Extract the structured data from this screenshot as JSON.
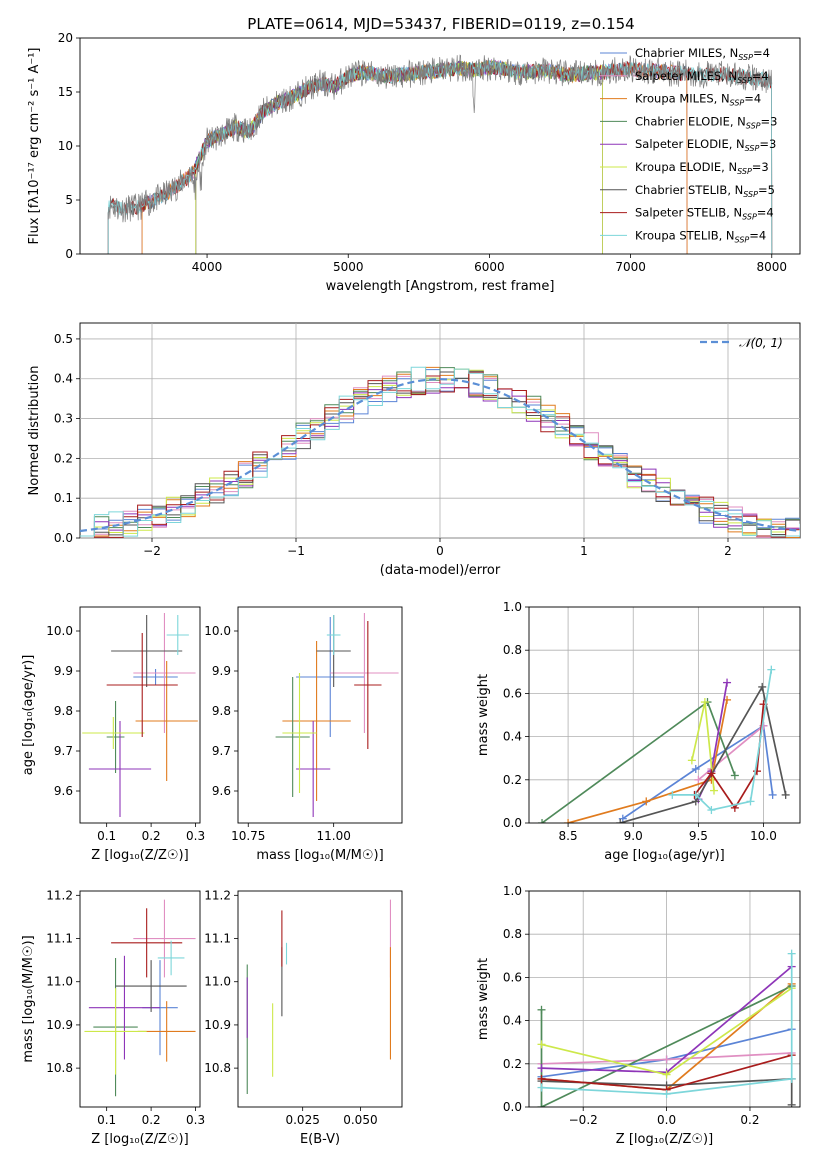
{
  "figure": {
    "title": "PLATE=0614, MJD=53437, FIBERID=0119, z=0.154"
  },
  "colors": {
    "Chabrier MILES": "#5b84d6",
    "Salpeter MILES": "#e08fc2",
    "Kroupa MILES": "#e07b1e",
    "Chabrier ELODIE": "#4f8a5a",
    "Salpeter ELODIE": "#8e35b8",
    "Kroupa ELODIE": "#cde84a",
    "Chabrier STELIB": "#555555",
    "Salpeter STELIB": "#a81c1c",
    "Kroupa STELIB": "#7dd6da"
  },
  "chart_data": [
    {
      "id": "spectrum",
      "type": "line",
      "title": "PLATE=0614, MJD=53437, FIBERID=0119, z=0.154",
      "xlabel": "wavelength [Angstrom, rest frame]",
      "ylabel": "Flux [fλ10⁻¹⁷ erg cm⁻² s⁻¹ A⁻¹]",
      "xlim": [
        3100,
        8200
      ],
      "ylim": [
        0,
        20
      ],
      "xticks": [
        "4000",
        "5000",
        "6000",
        "7000",
        "8000"
      ],
      "yticks": [
        "0",
        "5",
        "10",
        "15",
        "20"
      ],
      "grid": false,
      "legend": "top-right",
      "legend_entries": [
        {
          "label": "Chabrier MILES, N",
          "sub": "SSP",
          "suffix": "=4",
          "key": "Chabrier MILES"
        },
        {
          "label": "Salpeter MILES, N",
          "sub": "SSP",
          "suffix": "=4",
          "key": "Salpeter MILES"
        },
        {
          "label": "Kroupa MILES, N",
          "sub": "SSP",
          "suffix": "=4",
          "key": "Kroupa MILES"
        },
        {
          "label": "Chabrier ELODIE, N",
          "sub": "SSP",
          "suffix": "=3",
          "key": "Chabrier ELODIE"
        },
        {
          "label": "Salpeter ELODIE, N",
          "sub": "SSP",
          "suffix": "=3",
          "key": "Salpeter ELODIE"
        },
        {
          "label": "Kroupa ELODIE, N",
          "sub": "SSP",
          "suffix": "=3",
          "key": "Kroupa ELODIE"
        },
        {
          "label": "Chabrier STELIB, N",
          "sub": "SSP",
          "suffix": "=5",
          "key": "Chabrier STELIB"
        },
        {
          "label": "Salpeter STELIB, N",
          "sub": "SSP",
          "suffix": "=4",
          "key": "Salpeter STELIB"
        },
        {
          "label": "Kroupa STELIB, N",
          "sub": "SSP",
          "suffix": "=4",
          "key": "Kroupa STELIB"
        }
      ],
      "data_color": "#7f7f7f",
      "continuum_x": [
        3300,
        3400,
        3500,
        3600,
        3700,
        3800,
        3900,
        4000,
        4100,
        4200,
        4300,
        4400,
        4500,
        4600,
        4700,
        4800,
        4900,
        5000,
        5100,
        5200,
        5300,
        5400,
        5500,
        5600,
        5700,
        5800,
        5900,
        6000,
        6100,
        6200,
        6300,
        6400,
        6500,
        6600,
        6700,
        6800,
        6900,
        7000,
        7100,
        7200,
        7300,
        7400,
        7500,
        7600,
        7700,
        7800,
        7900,
        8000
      ],
      "continuum_y": [
        4.5,
        4.2,
        4.3,
        4.8,
        5.5,
        6.4,
        7.5,
        10.5,
        11.0,
        11.8,
        11.3,
        13.2,
        14.0,
        14.5,
        15.2,
        15.8,
        15.5,
        16.5,
        16.8,
        16.6,
        16.4,
        16.6,
        16.8,
        16.9,
        17.1,
        17.2,
        17.0,
        17.3,
        17.2,
        16.8,
        16.9,
        17.0,
        16.7,
        16.6,
        16.8,
        16.8,
        17.0,
        17.1,
        17.0,
        16.9,
        16.8,
        16.7,
        16.6,
        16.7,
        16.5,
        16.4,
        16.2,
        16.0
      ],
      "model_edges": {
        "Chabrier MILES": [
          3540,
          7400
        ],
        "Salpeter MILES": [
          3540,
          7400
        ],
        "Kroupa MILES": [
          3540,
          7400
        ],
        "Chabrier ELODIE": [
          3920,
          6800
        ],
        "Salpeter ELODIE": [
          3920,
          6800
        ],
        "Kroupa ELODIE": [
          3920,
          6800
        ],
        "Chabrier STELIB": [
          3300,
          8000
        ],
        "Salpeter STELIB": [
          3300,
          8000
        ],
        "Kroupa STELIB": [
          3300,
          8000
        ]
      }
    },
    {
      "id": "residual-histogram",
      "type": "line",
      "xlabel": "(data-model)/error",
      "ylabel": "Normed distribution",
      "xlim": [
        -2.5,
        2.5
      ],
      "ylim": [
        0,
        0.54
      ],
      "xticks": [
        "−2",
        "−1",
        "0",
        "1",
        "2"
      ],
      "yticks": [
        "0.0",
        "0.1",
        "0.2",
        "0.3",
        "0.4",
        "0.5"
      ],
      "grid": true,
      "legend": "top-right",
      "legend_entries": [
        {
          "label": "𝒩(0, 1)",
          "style": "dashed",
          "color": "#5b8fd6"
        }
      ],
      "gaussian": {
        "mean": 0,
        "sigma": 1
      },
      "bin_width": 0.1,
      "bin_start": -2.5
    },
    {
      "id": "z-age",
      "type": "scatter",
      "xlabel": "Z [log₁₀(Z/Z☉)]",
      "ylabel": "age  [log₁₀(age/yr)]",
      "xlim": [
        0.04,
        0.31
      ],
      "ylim": [
        9.52,
        10.06
      ],
      "xticks": [
        "0.1",
        "0.2",
        "0.3"
      ],
      "yticks": [
        "9.6",
        "9.7",
        "9.8",
        "9.9",
        "10.0"
      ],
      "grid": false,
      "points": [
        {
          "key": "Chabrier MILES",
          "x": 0.21,
          "xerr": 0.05,
          "y": 9.885,
          "yerr": 0.02
        },
        {
          "key": "Salpeter MILES",
          "x": 0.23,
          "xerr": 0.07,
          "y": 9.895,
          "yerr": 0.15
        },
        {
          "key": "Kroupa MILES",
          "x": 0.235,
          "xerr": 0.07,
          "y": 9.775,
          "yerr": 0.15
        },
        {
          "key": "Chabrier ELODIE",
          "x": 0.12,
          "xerr": 0.02,
          "y": 9.735,
          "yerr": 0.09
        },
        {
          "key": "Salpeter ELODIE",
          "x": 0.13,
          "xerr": 0.07,
          "y": 9.655,
          "yerr": 0.12
        },
        {
          "key": "Kroupa ELODIE",
          "x": 0.115,
          "xerr": 0.07,
          "y": 9.745,
          "yerr": 0.04
        },
        {
          "key": "Chabrier STELIB",
          "x": 0.19,
          "xerr": 0.08,
          "y": 9.95,
          "yerr": 0.09
        },
        {
          "key": "Salpeter STELIB",
          "x": 0.18,
          "xerr": 0.08,
          "y": 9.865,
          "yerr": 0.13
        },
        {
          "key": "Kroupa STELIB",
          "x": 0.26,
          "xerr": 0.025,
          "y": 9.99,
          "yerr": 0.05
        }
      ]
    },
    {
      "id": "mass-age",
      "type": "scatter",
      "xlabel": "mass [log₁₀(M/M☉)]",
      "xlim": [
        10.72,
        11.2
      ],
      "ylim": [
        9.52,
        10.06
      ],
      "xticks": [
        "10.75",
        "11.00"
      ],
      "yticks": [
        "9.6",
        "9.7",
        "9.8",
        "9.9",
        "10.0"
      ],
      "grid": false,
      "points": [
        {
          "key": "Chabrier MILES",
          "x": 10.99,
          "xerr": 0.1,
          "y": 9.885,
          "yerr": 0.15
        },
        {
          "key": "Salpeter MILES",
          "x": 11.09,
          "xerr": 0.1,
          "y": 9.895,
          "yerr": 0.15
        },
        {
          "key": "Kroupa MILES",
          "x": 10.95,
          "xerr": 0.1,
          "y": 9.775,
          "yerr": 0.2
        },
        {
          "key": "Chabrier ELODIE",
          "x": 10.88,
          "xerr": 0.05,
          "y": 9.735,
          "yerr": 0.15
        },
        {
          "key": "Salpeter ELODIE",
          "x": 10.94,
          "xerr": 0.05,
          "y": 9.655,
          "yerr": 0.12
        },
        {
          "key": "Kroupa ELODIE",
          "x": 10.9,
          "xerr": 0.05,
          "y": 9.745,
          "yerr": 0.15
        },
        {
          "key": "Chabrier STELIB",
          "x": 11.0,
          "xerr": 0.05,
          "y": 9.95,
          "yerr": 0.09
        },
        {
          "key": "Salpeter STELIB",
          "x": 11.1,
          "xerr": 0.04,
          "y": 9.865,
          "yerr": 0.16
        },
        {
          "key": "Kroupa STELIB",
          "x": 11.0,
          "xerr": 0.02,
          "y": 9.99,
          "yerr": 0.05
        }
      ]
    },
    {
      "id": "age-massweight",
      "type": "line",
      "xlabel": "age  [log₁₀(age/yr)]",
      "ylabel": "mass weight",
      "xlim": [
        8.2,
        10.28
      ],
      "ylim": [
        0,
        1.0
      ],
      "xticks": [
        "8.5",
        "9.0",
        "9.5",
        "10.0"
      ],
      "yticks": [
        "0.0",
        "0.2",
        "0.4",
        "0.6",
        "0.8",
        "1.0"
      ],
      "grid": true,
      "series": [
        {
          "key": "Chabrier MILES",
          "x": [
            8.92,
            9.48,
            10.0,
            10.07
          ],
          "y": [
            0.02,
            0.25,
            0.45,
            0.13
          ]
        },
        {
          "key": "Salpeter MILES",
          "x": [
            9.5,
            9.6,
            10.0
          ],
          "y": [
            0.2,
            0.25,
            0.45
          ]
        },
        {
          "key": "Kroupa MILES",
          "x": [
            8.5,
            9.1,
            9.6,
            9.72
          ],
          "y": [
            0.0,
            0.1,
            0.2,
            0.57
          ]
        },
        {
          "key": "Chabrier ELODIE",
          "x": [
            8.3,
            9.57,
            9.78
          ],
          "y": [
            0.0,
            0.56,
            0.22
          ]
        },
        {
          "key": "Salpeter ELODIE",
          "x": [
            9.5,
            9.6,
            9.72
          ],
          "y": [
            0.11,
            0.24,
            0.65
          ]
        },
        {
          "key": "Kroupa ELODIE",
          "x": [
            9.45,
            9.55,
            9.62
          ],
          "y": [
            0.29,
            0.56,
            0.15
          ]
        },
        {
          "key": "Chabrier STELIB",
          "x": [
            8.9,
            9.48,
            9.99,
            10.17
          ],
          "y": [
            0.0,
            0.1,
            0.63,
            0.13
          ]
        },
        {
          "key": "Salpeter STELIB",
          "x": [
            9.47,
            9.6,
            9.78,
            9.95,
            10.0
          ],
          "y": [
            0.13,
            0.23,
            0.07,
            0.24,
            0.55
          ]
        },
        {
          "key": "Kroupa STELIB",
          "x": [
            9.3,
            9.48,
            9.6,
            9.9,
            10.06
          ],
          "y": [
            0.13,
            0.13,
            0.06,
            0.1,
            0.71
          ]
        }
      ]
    },
    {
      "id": "z-mass",
      "type": "scatter",
      "xlabel": "Z [log₁₀(Z/Z☉)]",
      "ylabel": "mass [log₁₀(M/M☉)]",
      "xlim": [
        0.04,
        0.31
      ],
      "ylim": [
        10.71,
        11.21
      ],
      "xticks": [
        "0.1",
        "0.2",
        "0.3"
      ],
      "yticks": [
        "10.8",
        "10.9",
        "11.0",
        "11.1",
        "11.2"
      ],
      "grid": false,
      "points": [
        {
          "key": "Chabrier MILES",
          "x": 0.22,
          "xerr": 0.04,
          "y": 10.94,
          "yerr": 0.11
        },
        {
          "key": "Salpeter MILES",
          "x": 0.23,
          "xerr": 0.07,
          "y": 11.1,
          "yerr": 0.09
        },
        {
          "key": "Kroupa MILES",
          "x": 0.235,
          "xerr": 0.065,
          "y": 10.885,
          "yerr": 0.07
        },
        {
          "key": "Chabrier ELODIE",
          "x": 0.12,
          "xerr": 0.05,
          "y": 10.895,
          "yerr": 0.16
        },
        {
          "key": "Salpeter ELODIE",
          "x": 0.14,
          "xerr": 0.08,
          "y": 10.94,
          "yerr": 0.12
        },
        {
          "key": "Kroupa ELODIE",
          "x": 0.12,
          "xerr": 0.07,
          "y": 10.885,
          "yerr": 0.1
        },
        {
          "key": "Chabrier STELIB",
          "x": 0.2,
          "xerr": 0.08,
          "y": 10.99,
          "yerr": 0.06
        },
        {
          "key": "Salpeter STELIB",
          "x": 0.19,
          "xerr": 0.08,
          "y": 11.09,
          "yerr": 0.08
        },
        {
          "key": "Kroupa STELIB",
          "x": 0.245,
          "xerr": 0.03,
          "y": 11.055,
          "yerr": 0.04
        }
      ]
    },
    {
      "id": "ebv-mass",
      "type": "scatter",
      "xlabel": "E(B-V)",
      "xlim": [
        -0.003,
        0.068
      ],
      "ylim": [
        10.71,
        11.21
      ],
      "xticks": [
        "0.025",
        "0.050"
      ],
      "yticks": [
        "10.8",
        "10.9",
        "11.0",
        "11.1",
        "11.2"
      ],
      "grid": false,
      "points": [
        {
          "key": "Salpeter MILES",
          "x": 0.063,
          "y": 11.1,
          "yerr": 0.09
        },
        {
          "key": "Kroupa MILES",
          "x": 0.063,
          "y": 10.95,
          "yerr": 0.13
        },
        {
          "key": "Chabrier ELODIE",
          "x": 0.001,
          "y": 10.89,
          "yerr": 0.15
        },
        {
          "key": "Salpeter ELODIE",
          "x": 0.001,
          "y": 10.94,
          "yerr": 0.07
        },
        {
          "key": "Kroupa ELODIE",
          "x": 0.012,
          "y": 10.865,
          "yerr": 0.085
        },
        {
          "key": "Chabrier STELIB",
          "x": 0.016,
          "y": 11.0,
          "yerr": 0.08
        },
        {
          "key": "Salpeter STELIB",
          "x": 0.016,
          "y": 11.1,
          "yerr": 0.065
        },
        {
          "key": "Kroupa STELIB",
          "x": 0.018,
          "y": 11.065,
          "yerr": 0.025
        }
      ]
    },
    {
      "id": "z-massweight",
      "type": "line",
      "xlabel": "Z [log₁₀(Z/Z☉)]",
      "ylabel": "mass weight",
      "xlim": [
        -0.33,
        0.32
      ],
      "ylim": [
        0,
        1.0
      ],
      "xticks": [
        "−0.2",
        "0.0",
        "0.2"
      ],
      "yticks": [
        "0.0",
        "0.2",
        "0.4",
        "0.6",
        "0.8",
        "1.0"
      ],
      "grid": true,
      "series": [
        {
          "key": "Chabrier MILES",
          "x": [
            -0.3,
            0.0,
            0.3
          ],
          "y": [
            0.14,
            0.22,
            0.36
          ]
        },
        {
          "key": "Salpeter MILES",
          "x": [
            -0.3,
            0.0,
            0.3
          ],
          "y": [
            0.2,
            0.22,
            0.25
          ]
        },
        {
          "key": "Kroupa MILES",
          "x": [
            -0.3,
            0.0,
            0.3
          ],
          "y": [
            0.13,
            0.08,
            0.57
          ]
        },
        {
          "key": "Chabrier ELODIE",
          "x": [
            -0.3,
            -0.3,
            0.3
          ],
          "y": [
            0.45,
            0.0,
            0.56
          ]
        },
        {
          "key": "Salpeter ELODIE",
          "x": [
            -0.3,
            0.0,
            0.3
          ],
          "y": [
            0.18,
            0.16,
            0.65
          ]
        },
        {
          "key": "Kroupa ELODIE",
          "x": [
            -0.3,
            0.0,
            0.3
          ],
          "y": [
            0.29,
            0.15,
            0.55
          ]
        },
        {
          "key": "Chabrier STELIB",
          "x": [
            -0.3,
            0.0,
            0.3,
            0.3
          ],
          "y": [
            0.12,
            0.1,
            0.13,
            0.01
          ]
        },
        {
          "key": "Salpeter STELIB",
          "x": [
            -0.3,
            0.0,
            0.3
          ],
          "y": [
            0.13,
            0.08,
            0.24
          ]
        },
        {
          "key": "Kroupa STELIB",
          "x": [
            -0.3,
            0.0,
            0.3,
            0.3
          ],
          "y": [
            0.09,
            0.06,
            0.13,
            0.71
          ]
        }
      ]
    }
  ]
}
